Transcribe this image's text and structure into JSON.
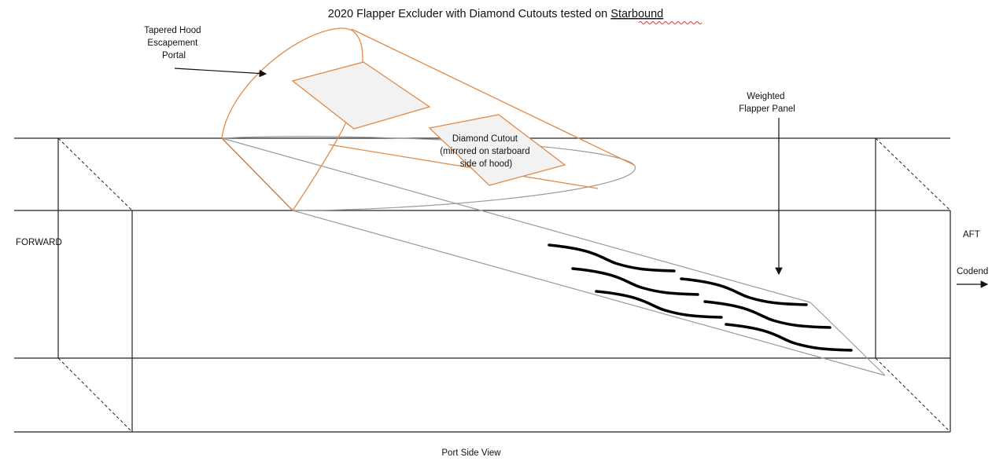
{
  "title": {
    "prefix": "2020 Flapper Excluder with Diamond Cutouts tested on ",
    "vessel": "Starbound"
  },
  "labels": {
    "hood": [
      "Tapered Hood",
      "Escapement",
      "Portal"
    ],
    "diamond": [
      "Diamond Cutout",
      "(mirrored on starboard",
      "side of hood)"
    ],
    "flapper": [
      "Weighted",
      "Flapper Panel"
    ],
    "forward": "FORWARD",
    "aft": "AFT",
    "codend": "Codend",
    "view": "Port Side View"
  },
  "colors": {
    "frame": "#222222",
    "hood": "#e08b4a",
    "cutout_fill": "#f2f2f2",
    "panel_outline": "#9a9a9a",
    "weights": "#000000",
    "spellcheck": "#e03030"
  }
}
